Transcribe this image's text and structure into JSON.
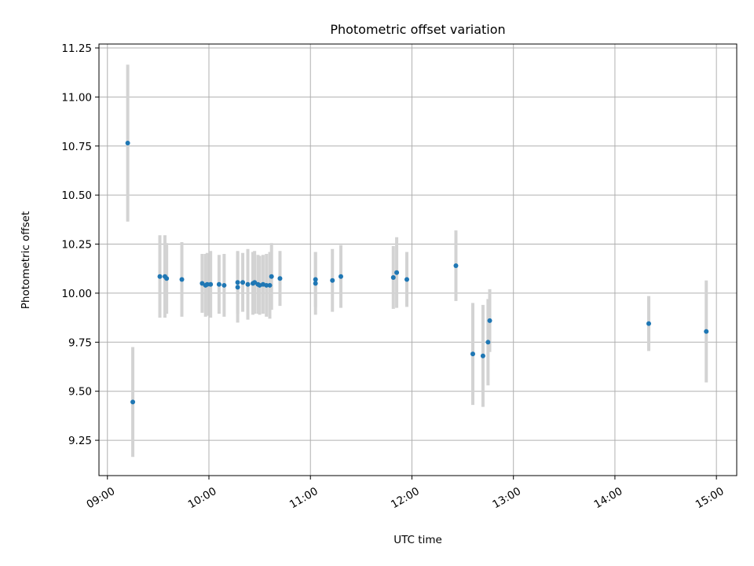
{
  "chart_data": {
    "type": "scatter",
    "title": "Photometric offset variation",
    "xlabel": "UTC time",
    "ylabel": "Photometric offset",
    "xlim": [
      "08:55",
      "15:12"
    ],
    "ylim": [
      9.07,
      11.27
    ],
    "x_ticks": [
      "09:00",
      "10:00",
      "11:00",
      "12:00",
      "13:00",
      "14:00",
      "15:00"
    ],
    "y_ticks": [
      "9.25",
      "9.50",
      "9.75",
      "10.00",
      "10.25",
      "10.50",
      "10.75",
      "11.00",
      "11.25"
    ],
    "grid": true,
    "marker_color": "#1f77b4",
    "errorbar_color": "#d3d3d3",
    "x": [
      "09:12",
      "09:15",
      "09:31",
      "09:34",
      "09:35",
      "09:44",
      "09:56",
      "09:58",
      "09:59",
      "10:01",
      "10:06",
      "10:09",
      "10:17",
      "10:17",
      "10:20",
      "10:23",
      "10:26",
      "10:27",
      "10:29",
      "10:30",
      "10:32",
      "10:34",
      "10:36",
      "10:37",
      "10:42",
      "11:03",
      "11:03",
      "11:13",
      "11:18",
      "11:49",
      "11:51",
      "11:57",
      "12:26",
      "12:36",
      "12:42",
      "12:45",
      "12:46",
      "14:20",
      "14:54"
    ],
    "y": [
      10.765,
      9.445,
      10.085,
      10.085,
      10.075,
      10.07,
      10.05,
      10.04,
      10.045,
      10.045,
      10.045,
      10.04,
      10.055,
      10.03,
      10.055,
      10.045,
      10.05,
      10.055,
      10.045,
      10.04,
      10.045,
      10.04,
      10.04,
      10.085,
      10.075,
      10.07,
      10.05,
      10.065,
      10.085,
      10.08,
      10.105,
      10.07,
      10.14,
      9.69,
      9.68,
      9.75,
      9.86,
      9.845,
      9.805
    ],
    "yerr": [
      0.4,
      0.28,
      0.21,
      0.21,
      0.18,
      0.19,
      0.15,
      0.16,
      0.16,
      0.17,
      0.15,
      0.16,
      0.16,
      0.18,
      0.15,
      0.18,
      0.16,
      0.16,
      0.15,
      0.15,
      0.15,
      0.16,
      0.17,
      0.17,
      0.14,
      0.14,
      0.16,
      0.16,
      0.16,
      0.16,
      0.18,
      0.14,
      0.18,
      0.26,
      0.26,
      0.22,
      0.16,
      0.14,
      0.26
    ]
  }
}
